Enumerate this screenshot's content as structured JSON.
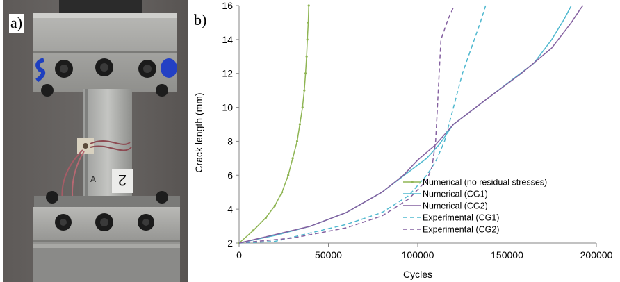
{
  "panel_a": {
    "label": "a)",
    "specimen_marks": {
      "blue_mark_text": "S",
      "specimen_number": "2",
      "arrow_letter": "A"
    }
  },
  "panel_b": {
    "label": "b)"
  },
  "colors": {
    "green": "#8fb554",
    "cyan": "#4fb8cf",
    "purple": "#8460a0",
    "axis": "#868686"
  },
  "chart_data": {
    "type": "line",
    "xlabel": "Cycles",
    "ylabel": "Crack length (mm)",
    "xlim": [
      0,
      200000
    ],
    "ylim": [
      2,
      16
    ],
    "x_ticks": [
      "0",
      "50000",
      "100000",
      "150000",
      "200000"
    ],
    "x_tick_values": [
      0,
      50000,
      100000,
      150000,
      200000
    ],
    "y_ticks": [
      "2",
      "4",
      "6",
      "8",
      "10",
      "12",
      "14",
      "16"
    ],
    "y_tick_values": [
      2,
      4,
      6,
      8,
      10,
      12,
      14,
      16
    ],
    "grid": false,
    "legend_position": "center-right",
    "series": [
      {
        "name": "Numerical (no residual stresses)",
        "color": "#8fb554",
        "dash": "solid",
        "markers": true,
        "points": [
          [
            0,
            2
          ],
          [
            8000,
            2.75
          ],
          [
            15000,
            3.5
          ],
          [
            20000,
            4.2
          ],
          [
            24000,
            5
          ],
          [
            27500,
            6
          ],
          [
            30000,
            7
          ],
          [
            32500,
            8
          ],
          [
            34000,
            9
          ],
          [
            35500,
            10
          ],
          [
            36500,
            11
          ],
          [
            37200,
            12
          ],
          [
            37800,
            13
          ],
          [
            38200,
            14
          ],
          [
            38700,
            15
          ],
          [
            39000,
            16
          ]
        ]
      },
      {
        "name": "Numerical (CG1)",
        "color": "#4fb8cf",
        "dash": "solid",
        "markers": false,
        "points": [
          [
            0,
            2
          ],
          [
            20000,
            2.45
          ],
          [
            40000,
            3
          ],
          [
            60000,
            3.8
          ],
          [
            80000,
            5
          ],
          [
            95000,
            6.2
          ],
          [
            105000,
            7
          ],
          [
            112000,
            7.8
          ],
          [
            120000,
            9
          ],
          [
            135000,
            10.2
          ],
          [
            150000,
            11.4
          ],
          [
            165000,
            12.6
          ],
          [
            175000,
            14
          ],
          [
            182000,
            15.2
          ],
          [
            186000,
            16
          ]
        ]
      },
      {
        "name": "Numerical (CG2)",
        "color": "#8460a0",
        "dash": "solid",
        "markers": false,
        "points": [
          [
            0,
            2
          ],
          [
            20000,
            2.5
          ],
          [
            40000,
            3
          ],
          [
            60000,
            3.8
          ],
          [
            80000,
            5
          ],
          [
            92000,
            6
          ],
          [
            100000,
            6.9
          ],
          [
            110000,
            7.8
          ],
          [
            120000,
            9
          ],
          [
            140000,
            10.6
          ],
          [
            158000,
            12
          ],
          [
            175000,
            13.5
          ],
          [
            186000,
            15
          ],
          [
            191000,
            15.8
          ],
          [
            192500,
            16
          ]
        ]
      },
      {
        "name": "Experimental (CG1)",
        "color": "#4fb8cf",
        "dash": "dashed",
        "markers": false,
        "points": [
          [
            0,
            2
          ],
          [
            20000,
            2.1
          ],
          [
            40000,
            2.6
          ],
          [
            60000,
            3.1
          ],
          [
            80000,
            3.8
          ],
          [
            95000,
            4.8
          ],
          [
            105000,
            6
          ],
          [
            110000,
            6.8
          ],
          [
            115000,
            8
          ],
          [
            120000,
            10
          ],
          [
            125000,
            12
          ],
          [
            130000,
            13.5
          ],
          [
            135000,
            15
          ],
          [
            138000,
            16
          ]
        ]
      },
      {
        "name": "Experimental (CG2)",
        "color": "#8460a0",
        "dash": "dashed",
        "markers": false,
        "points": [
          [
            0,
            2
          ],
          [
            30000,
            2.3
          ],
          [
            60000,
            2.9
          ],
          [
            80000,
            3.6
          ],
          [
            95000,
            4.6
          ],
          [
            105000,
            5.7
          ],
          [
            108000,
            6.5
          ],
          [
            110000,
            8
          ],
          [
            111000,
            10
          ],
          [
            112000,
            12
          ],
          [
            113000,
            14
          ],
          [
            117000,
            15.2
          ],
          [
            120000,
            15.9
          ]
        ]
      }
    ]
  }
}
